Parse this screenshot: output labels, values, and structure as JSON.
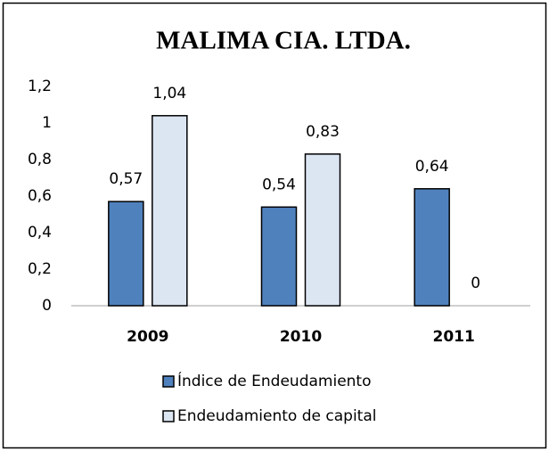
{
  "chart_data": {
    "type": "bar",
    "title": "MALIMA CIA. LTDA.",
    "categories": [
      "2009",
      "2010",
      "2011"
    ],
    "series": [
      {
        "name": "Índice de Endeudamiento",
        "color": "#4f81bd",
        "values": [
          0.57,
          0.54,
          0.64
        ],
        "value_labels": [
          "0,57",
          "0,54",
          "0,64"
        ]
      },
      {
        "name": "Endeudamiento de capital",
        "color": "#dce6f2",
        "values": [
          1.04,
          0.83,
          0
        ],
        "value_labels": [
          "1,04",
          "0,83",
          "0"
        ]
      }
    ],
    "ylim": [
      0,
      1.2
    ],
    "yticks": [
      0,
      {
        "value": 0.2,
        "label": "0,2"
      },
      {
        "value": 0.4,
        "label": "0,4"
      },
      {
        "value": 0.6,
        "label": "0,6"
      },
      {
        "value": 0.8,
        "label": "0,8"
      },
      1,
      {
        "value": 1.2,
        "label": "1,2"
      }
    ],
    "legend": "bottom"
  }
}
